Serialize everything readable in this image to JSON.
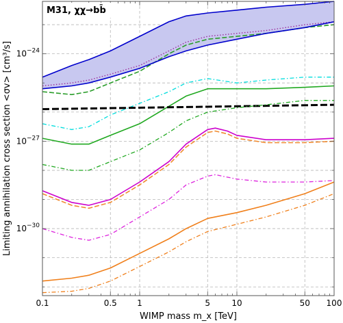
{
  "chart_data": {
    "type": "line",
    "title": "M31, χχ→bb̄",
    "xlabel": "WIMP mass m_x [TeV]",
    "ylabel": "Limiting annihilation cross section <σv> [cm³/s]",
    "xscale": "log",
    "yscale": "log",
    "xlim": [
      0.1,
      100
    ],
    "ylim_log10": [
      -32.3,
      -22.2
    ],
    "grid": true,
    "legend": "none",
    "x_ticks": [
      {
        "value": 0.1,
        "label": "0.1"
      },
      {
        "value": 0.5,
        "label": "0.5"
      },
      {
        "value": 1,
        "label": "1"
      },
      {
        "value": 5,
        "label": "5"
      },
      {
        "value": 10,
        "label": "10"
      },
      {
        "value": 50,
        "label": "50"
      },
      {
        "value": 100,
        "label": "100"
      }
    ],
    "y_ticks": [
      {
        "log10": -24,
        "base": "10",
        "exp": "−24"
      },
      {
        "log10": -27,
        "base": "10",
        "exp": "−27"
      },
      {
        "log10": -30,
        "base": "10",
        "exp": "−30"
      }
    ],
    "band": {
      "color": "#0000cc",
      "fill": "#c8c8f0",
      "x": [
        0.1,
        0.2,
        0.3,
        0.5,
        1,
        2,
        3,
        5,
        10,
        20,
        50,
        100
      ],
      "upper_log10": [
        -24.8,
        -24.4,
        -24.2,
        -23.9,
        -23.4,
        -22.9,
        -22.7,
        -22.6,
        -22.5,
        -22.4,
        -22.3,
        -22.2
      ],
      "lower_log10": [
        -25.2,
        -25.1,
        -25.0,
        -24.8,
        -24.5,
        -24.1,
        -23.9,
        -23.7,
        -23.5,
        -23.3,
        -23.1,
        -22.9
      ]
    },
    "series": [
      {
        "color": "#9b2c9b",
        "style": "dotted",
        "x": [
          0.1,
          0.2,
          0.3,
          0.5,
          1,
          2,
          3,
          5,
          10,
          20,
          50,
          100
        ],
        "y_log10": [
          -25.1,
          -25.0,
          -24.9,
          -24.7,
          -24.4,
          -23.9,
          -23.6,
          -23.4,
          -23.3,
          -23.2,
          -23.0,
          -22.9
        ]
      },
      {
        "color": "#2a9d2a",
        "style": "dashed",
        "x": [
          0.1,
          0.2,
          0.3,
          0.5,
          1,
          2,
          3,
          5,
          10,
          20,
          50,
          100
        ],
        "y_log10": [
          -25.3,
          -25.4,
          -25.3,
          -25.0,
          -24.6,
          -24.0,
          -23.7,
          -23.5,
          -23.4,
          -23.3,
          -23.1,
          -23.0
        ]
      },
      {
        "color": "#00dddd",
        "style": "dashdot",
        "x": [
          0.1,
          0.2,
          0.3,
          0.5,
          1,
          2,
          3,
          5,
          10,
          20,
          50,
          100
        ],
        "y_log10": [
          -26.4,
          -26.6,
          -26.5,
          -26.1,
          -25.7,
          -25.3,
          -25.0,
          -24.85,
          -25.0,
          -24.9,
          -24.8,
          -24.8
        ]
      },
      {
        "color": "#1fa81f",
        "style": "solid",
        "x": [
          0.1,
          0.2,
          0.3,
          0.5,
          1,
          2,
          3,
          5,
          7,
          10,
          20,
          50,
          100
        ],
        "y_log10": [
          -26.9,
          -27.1,
          -27.1,
          -26.8,
          -26.4,
          -25.8,
          -25.45,
          -25.2,
          -25.2,
          -25.2,
          -25.2,
          -25.15,
          -25.1
        ]
      },
      {
        "color": "#000000",
        "style": "thickdashed",
        "x": [
          0.1,
          1,
          10,
          100
        ],
        "y_log10": [
          -25.9,
          -25.85,
          -25.8,
          -25.75
        ]
      },
      {
        "color": "#1fa81f",
        "style": "dashdot",
        "x": [
          0.1,
          0.2,
          0.3,
          0.5,
          1,
          2,
          3,
          5,
          10,
          20,
          50,
          100
        ],
        "y_log10": [
          -27.8,
          -28.0,
          -28.0,
          -27.7,
          -27.3,
          -26.7,
          -26.3,
          -26.0,
          -25.85,
          -25.75,
          -25.6,
          -25.6
        ]
      },
      {
        "color": "#cc00cc",
        "style": "solid",
        "x": [
          0.1,
          0.2,
          0.3,
          0.5,
          1,
          2,
          3,
          5,
          6,
          8,
          10,
          20,
          50,
          100
        ],
        "y_log10": [
          -28.7,
          -29.1,
          -29.2,
          -29.0,
          -28.4,
          -27.7,
          -27.1,
          -26.6,
          -26.55,
          -26.65,
          -26.8,
          -26.95,
          -26.95,
          -26.9
        ]
      },
      {
        "color": "#f08a30",
        "style": "dashed",
        "x": [
          0.1,
          0.2,
          0.3,
          0.5,
          1,
          2,
          3,
          5,
          6,
          8,
          10,
          20,
          50,
          100
        ],
        "y_log10": [
          -28.8,
          -29.2,
          -29.3,
          -29.1,
          -28.5,
          -27.8,
          -27.2,
          -26.7,
          -26.65,
          -26.75,
          -26.9,
          -27.05,
          -27.05,
          -27.0
        ]
      },
      {
        "color": "#dd22dd",
        "style": "dashdot",
        "x": [
          0.1,
          0.2,
          0.3,
          0.5,
          1,
          2,
          3,
          5,
          6,
          10,
          20,
          50,
          100
        ],
        "y_log10": [
          -30.0,
          -30.3,
          -30.4,
          -30.2,
          -29.6,
          -29.0,
          -28.5,
          -28.2,
          -28.15,
          -28.3,
          -28.4,
          -28.4,
          -28.35
        ]
      },
      {
        "color": "#f07f1a",
        "style": "solid",
        "x": [
          0.1,
          0.2,
          0.3,
          0.5,
          1,
          2,
          3,
          5,
          10,
          20,
          50,
          100
        ],
        "y_log10": [
          -31.8,
          -31.7,
          -31.6,
          -31.35,
          -30.85,
          -30.35,
          -30.0,
          -29.65,
          -29.45,
          -29.2,
          -28.8,
          -28.4
        ]
      },
      {
        "color": "#f07f1a",
        "style": "dashdot",
        "x": [
          0.1,
          0.2,
          0.3,
          0.5,
          1,
          2,
          3,
          5,
          10,
          20,
          50,
          100
        ],
        "y_log10": [
          -32.2,
          -32.15,
          -32.05,
          -31.8,
          -31.3,
          -30.8,
          -30.45,
          -30.1,
          -29.85,
          -29.6,
          -29.2,
          -28.8
        ]
      }
    ]
  }
}
